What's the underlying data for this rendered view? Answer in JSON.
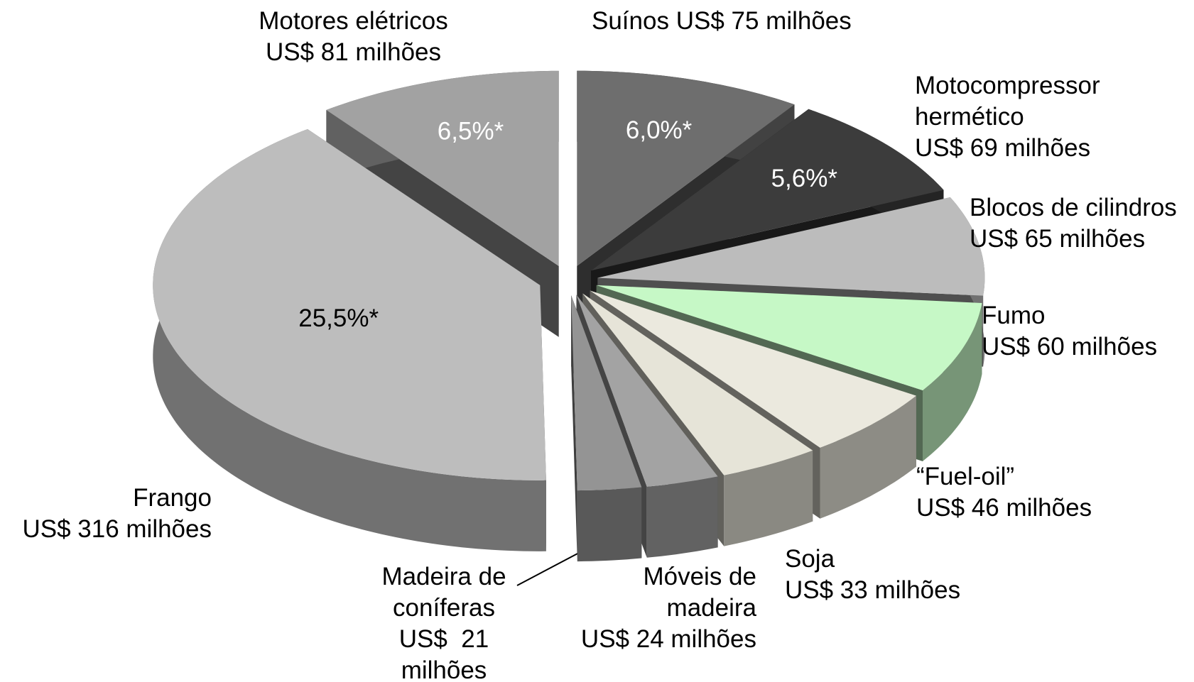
{
  "chart_data": {
    "type": "pie3d",
    "categories": [
      "Suínos",
      "Motocompressor hermético",
      "Blocos de cilindros",
      "Fumo",
      "“Fuel-oil”",
      "Soja",
      "Móveis de madeira",
      "Madeira de coníferas",
      "Frango",
      "Motores elétricos"
    ],
    "values": [
      75,
      69,
      65,
      60,
      46,
      33,
      24,
      21,
      316,
      81
    ],
    "value_labels": [
      "US$ 75 milhões",
      "US$ 69 milhões",
      "US$ 65 milhões",
      "US$ 60 milhões",
      "US$ 46 milhões",
      "US$ 33 milhões",
      "US$ 24 milhões",
      "US$  21 milhões",
      "US$ 316 milhões",
      "US$ 81 milhões"
    ],
    "shares": [
      6.0,
      5.6,
      null,
      null,
      null,
      null,
      null,
      null,
      25.5,
      6.5
    ],
    "share_labels": [
      "6,0%*",
      "5,6%*",
      null,
      null,
      null,
      null,
      null,
      null,
      "25,5%*",
      "6,5%*"
    ],
    "colors": [
      "#6e6e6e",
      "#3c3c3c",
      "#bcbcbc",
      "#c6f8c6",
      "#ebe9de",
      "#e6e4d8",
      "#a3a3a3",
      "#949494",
      "#bdbdbd",
      "#a2a2a2"
    ]
  }
}
